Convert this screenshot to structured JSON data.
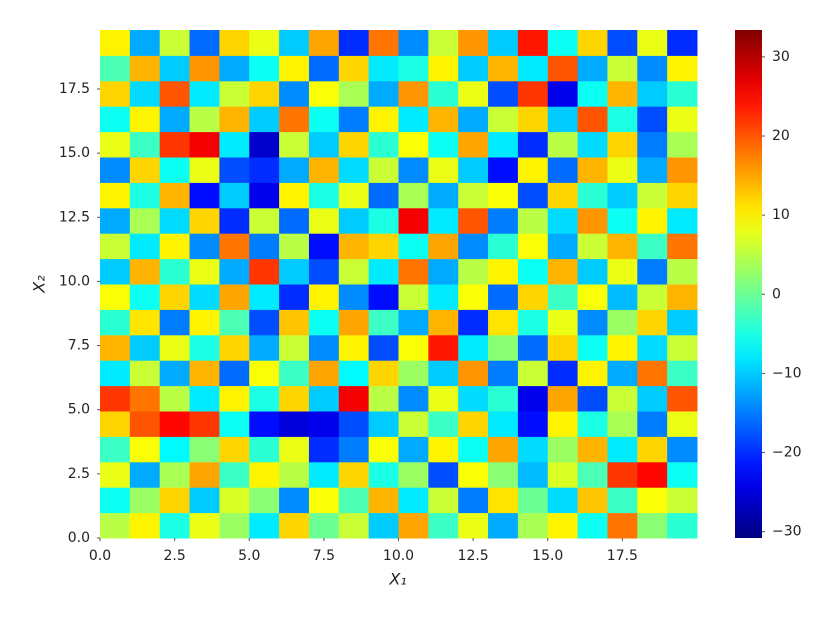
{
  "chart_data": {
    "type": "heatmap",
    "colormap": "jet",
    "xlabel": "X₁",
    "ylabel": "X₂",
    "xlim": [
      0,
      20
    ],
    "ylim": [
      0,
      19.8
    ],
    "xticks": [
      {
        "value": 0,
        "label": "0.0"
      },
      {
        "value": 2.5,
        "label": "2.5"
      },
      {
        "value": 5,
        "label": "5.0"
      },
      {
        "value": 7.5,
        "label": "7.5"
      },
      {
        "value": 10,
        "label": "10.0"
      },
      {
        "value": 12.5,
        "label": "12.5"
      },
      {
        "value": 15,
        "label": "15.0"
      },
      {
        "value": 17.5,
        "label": "17.5"
      }
    ],
    "yticks": [
      {
        "value": 0,
        "label": "0.0"
      },
      {
        "value": 2.5,
        "label": "2.5"
      },
      {
        "value": 5,
        "label": "5.0"
      },
      {
        "value": 7.5,
        "label": "7.5"
      },
      {
        "value": 10,
        "label": "10.0"
      },
      {
        "value": 12.5,
        "label": "12.5"
      },
      {
        "value": 15,
        "label": "15.0"
      },
      {
        "value": 17.5,
        "label": "17.5"
      }
    ],
    "clim": [
      -30.8,
      33.4
    ],
    "cticks": [
      {
        "value": -30,
        "label": "−30"
      },
      {
        "value": -20,
        "label": "−20"
      },
      {
        "value": -10,
        "label": "−10"
      },
      0,
      10,
      20,
      30
    ],
    "z": [
      [
        5,
        10,
        -5,
        8,
        3,
        -8,
        12,
        0,
        6,
        -10,
        15,
        -3,
        8,
        -12,
        4,
        10,
        -6,
        18,
        2,
        -4
      ],
      [
        -6,
        3,
        12,
        -10,
        7,
        2,
        -14,
        9,
        -2,
        14,
        -8,
        6,
        -15,
        11,
        0,
        -9,
        13,
        -3,
        9,
        6
      ],
      [
        8,
        -12,
        4,
        15,
        -3,
        10,
        5,
        -8,
        12,
        -5,
        3,
        -18,
        9,
        2,
        -11,
        7,
        -2,
        22,
        25,
        -6
      ],
      [
        -3,
        9,
        -7,
        2,
        12,
        -4,
        8,
        -20,
        -15,
        9,
        -12,
        10,
        -6,
        15,
        -9,
        3,
        14,
        -8,
        12,
        -14
      ],
      [
        12,
        20,
        25,
        22,
        -6,
        -22,
        -25,
        -24,
        -18,
        -10,
        6,
        -3,
        12,
        -8,
        -22,
        10,
        -5,
        4,
        -15,
        8
      ],
      [
        22,
        18,
        5,
        -8,
        10,
        -5,
        12,
        -10,
        26,
        5,
        -14,
        8,
        -9,
        -4,
        -24,
        15,
        -18,
        6,
        -10,
        20
      ],
      [
        -8,
        6,
        -12,
        14,
        -16,
        9,
        -3,
        15,
        -7,
        12,
        3,
        -10,
        16,
        -15,
        6,
        -20,
        10,
        -12,
        18,
        -3
      ],
      [
        14,
        -10,
        8,
        -5,
        12,
        -12,
        6,
        -14,
        10,
        -18,
        9,
        24,
        -8,
        2,
        -16,
        12,
        -6,
        10,
        -9,
        6
      ],
      [
        -4,
        11,
        -15,
        10,
        -2,
        -18,
        13,
        -6,
        15,
        -3,
        -12,
        14,
        -20,
        11,
        -5,
        8,
        -14,
        3,
        12,
        -10
      ],
      [
        9,
        -6,
        12,
        -9,
        15,
        -8,
        -20,
        10,
        -14,
        -22,
        6,
        -8,
        9,
        -16,
        12,
        -3,
        9,
        -11,
        6,
        14
      ],
      [
        -10,
        14,
        -4,
        8,
        -12,
        22,
        -10,
        -18,
        6,
        -8,
        18,
        -12,
        5,
        10,
        -6,
        14,
        -10,
        8,
        -15,
        5
      ],
      [
        6,
        -8,
        10,
        -14,
        18,
        -15,
        5,
        -22,
        14,
        12,
        -6,
        15,
        -14,
        -4,
        9,
        -12,
        6,
        14,
        -3,
        18
      ],
      [
        -12,
        4,
        -9,
        12,
        -20,
        6,
        -16,
        8,
        -10,
        -5,
        26,
        -8,
        20,
        -15,
        5,
        -9,
        16,
        -6,
        10,
        -8
      ],
      [
        10,
        -5,
        14,
        -22,
        -10,
        -24,
        10,
        -5,
        8,
        -16,
        4,
        -12,
        6,
        9,
        -18,
        12,
        -4,
        -10,
        6,
        12
      ],
      [
        -14,
        12,
        -6,
        8,
        -18,
        -20,
        -12,
        14,
        -9,
        6,
        -14,
        8,
        -10,
        -22,
        10,
        -16,
        14,
        8,
        -12,
        16
      ],
      [
        8,
        -3,
        22,
        26,
        -8,
        -26,
        6,
        -10,
        12,
        -4,
        9,
        -6,
        15,
        -8,
        -20,
        5,
        -9,
        12,
        -15,
        4
      ],
      [
        -6,
        10,
        -12,
        5,
        14,
        -10,
        18,
        -6,
        -15,
        10,
        -8,
        14,
        -12,
        6,
        12,
        -10,
        20,
        -5,
        -18,
        8
      ],
      [
        12,
        -9,
        20,
        -8,
        6,
        12,
        -14,
        9,
        4,
        -12,
        16,
        -4,
        8,
        -18,
        22,
        -24,
        -6,
        14,
        -10,
        -4
      ],
      [
        -2,
        14,
        -10,
        16,
        -12,
        -6,
        10,
        -16,
        12,
        -8,
        -5,
        10,
        -10,
        14,
        -8,
        20,
        -12,
        6,
        -14,
        10
      ],
      [
        10,
        -12,
        6,
        -16,
        12,
        8,
        -10,
        15,
        -20,
        18,
        -14,
        6,
        16,
        -10,
        24,
        -6,
        12,
        -18,
        8,
        -20
      ]
    ]
  }
}
